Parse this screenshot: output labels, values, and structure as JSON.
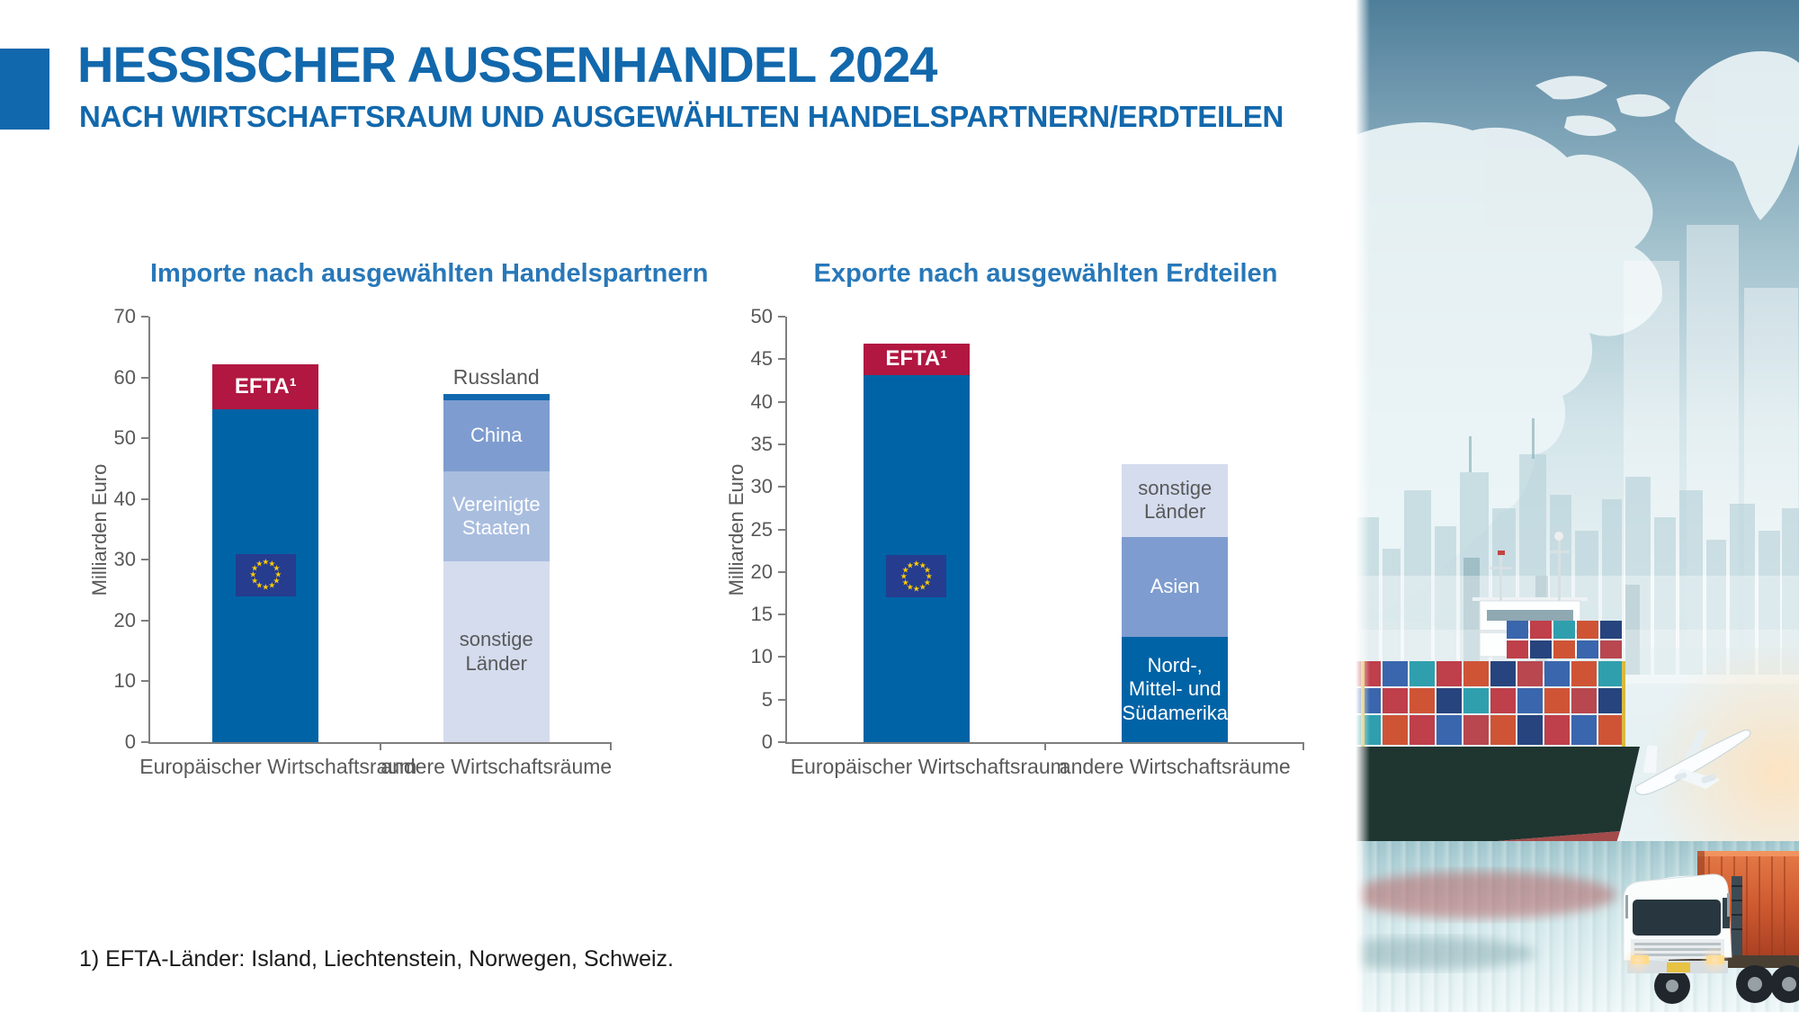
{
  "header": {
    "title": "HESSISCHER AUSSENHANDEL 2024",
    "subtitle": "NACH WIRTSCHAFTSRAUM UND AUSGEWÄHLTEN HANDELSPARTNERN/ERDTEILEN"
  },
  "footnote": "1) EFTA-Länder: Island, Liechtenstein, Norwegen, Schweiz.",
  "colors": {
    "title_blue": "#1268AC",
    "chart_title_blue": "#2878B9",
    "eu_blue": "#0063A6",
    "efta_red": "#B11741",
    "medium_blue": "#7E9CCF",
    "light_blue": "#A9BDDF",
    "pale_blue": "#D4DCEE",
    "russia_blue": "#1268AE",
    "axis_gray": "#7F7F7F",
    "label_gray": "#595959",
    "flag_navy": "#253C8F",
    "flag_gold": "#FFCC00"
  },
  "chart_data": [
    {
      "type": "bar",
      "stacked": true,
      "title": "Importe nach ausgewählten Handelspartnern",
      "ylabel": "Milliarden Euro",
      "ylim": [
        0,
        70
      ],
      "ytick_step": 10,
      "grid": false,
      "categories": [
        "Europäischer Wirtschaftsraum",
        "andere Wirtschaftsräume"
      ],
      "bars": [
        {
          "category": "Europäischer Wirtschaftsraum",
          "total": 62.1,
          "flag": {
            "icon": "eu-flag",
            "center_value": 27.5
          },
          "segments": [
            {
              "name": "Europäischer Wirtschaftsraum (EU)",
              "label": "",
              "value": 54.7,
              "color": "#0063A6",
              "text_color": "#FFFFFF"
            },
            {
              "name": "EFTA",
              "label": "EFTA¹",
              "value": 7.4,
              "color": "#B11741",
              "text_color": "#FFFFFF",
              "bold": true
            }
          ]
        },
        {
          "category": "andere Wirtschaftsräume",
          "total": 57.3,
          "segments": [
            {
              "name": "sonstige Länder",
              "label": "sonstige\nLänder",
              "value": 29.7,
              "color": "#D4DCEE",
              "text_color": "#595959"
            },
            {
              "name": "Vereinigte Staaten",
              "label": "Vereinigte\nStaaten",
              "value": 14.8,
              "color": "#A9BDDF",
              "text_color": "#FFFFFF"
            },
            {
              "name": "China",
              "label": "China",
              "value": 11.8,
              "color": "#7E9CCF",
              "text_color": "#FFFFFF"
            },
            {
              "name": "Russland",
              "label": "Russland",
              "value": 1.0,
              "color": "#1268AE",
              "text_color": "#595959",
              "label_outside": true
            }
          ]
        }
      ]
    },
    {
      "type": "bar",
      "stacked": true,
      "title": "Exporte nach ausgewählten Erdteilen",
      "ylabel": "Milliarden Euro",
      "ylim": [
        0,
        50
      ],
      "ytick_step": 5,
      "grid": false,
      "categories": [
        "Europäischer Wirtschaftsraum",
        "andere Wirtschaftsräume"
      ],
      "bars": [
        {
          "category": "Europäischer Wirtschaftsraum",
          "total": 46.8,
          "flag": {
            "icon": "eu-flag",
            "center_value": 19.5
          },
          "segments": [
            {
              "name": "Europäischer Wirtschaftsraum (EU)",
              "label": "",
              "value": 43.1,
              "color": "#0063A6",
              "text_color": "#FFFFFF"
            },
            {
              "name": "EFTA",
              "label": "EFTA¹",
              "value": 3.7,
              "color": "#B11741",
              "text_color": "#FFFFFF",
              "bold": true
            }
          ]
        },
        {
          "category": "andere Wirtschaftsräume",
          "total": 32.7,
          "segments": [
            {
              "name": "Nord-, Mittel- und Südamerika",
              "label": "Nord-,\nMittel- und\nSüdamerika",
              "value": 12.4,
              "color": "#0063A6",
              "text_color": "#FFFFFF"
            },
            {
              "name": "Asien",
              "label": "Asien",
              "value": 11.7,
              "color": "#7E9CCF",
              "text_color": "#FFFFFF"
            },
            {
              "name": "sonstige Länder",
              "label": "sonstige\nLänder",
              "value": 8.6,
              "color": "#D4DCEE",
              "text_color": "#595959"
            }
          ]
        }
      ]
    }
  ]
}
